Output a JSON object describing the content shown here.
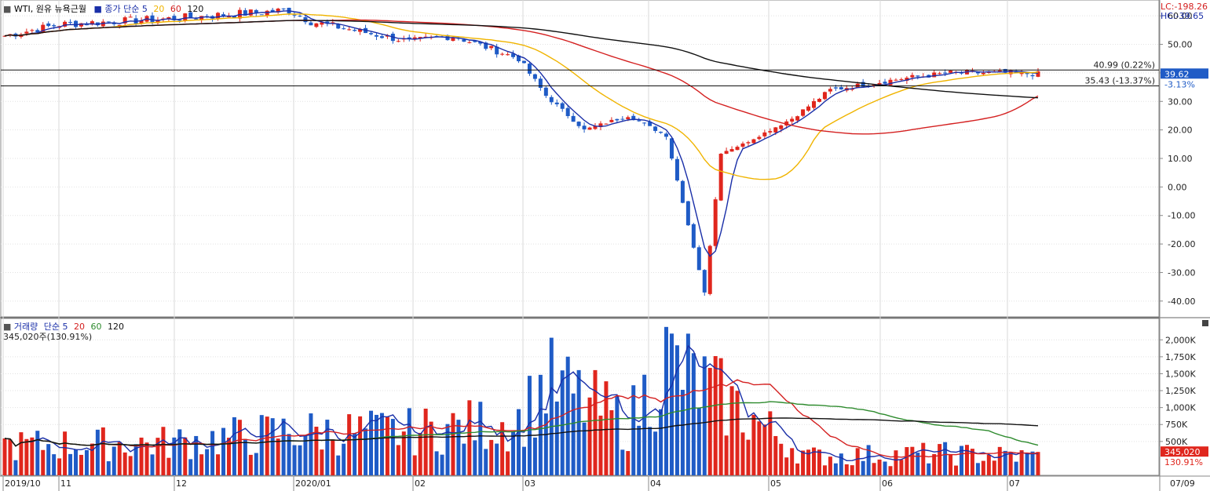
{
  "price_legend": {
    "marker": "■",
    "title": "WTI, 원유 뉴욕근월",
    "ma_label": "■ 종가 단순",
    "ma_periods": [
      "5",
      "20",
      "60",
      "120"
    ],
    "ma_colors": [
      "#1a2fa8",
      "#f0b400",
      "#d42020",
      "#111111"
    ]
  },
  "volume_legend": {
    "marker": "■",
    "title": "거래량",
    "ma_label": "단순",
    "ma_periods": [
      "5",
      "20",
      "60",
      "120"
    ],
    "ma_colors": [
      "#1a2fa8",
      "#d42020",
      "#2e8b2e",
      "#111111"
    ],
    "current": "345,020주(130.91%)"
  },
  "corner_labels": {
    "lc": "LC:-198.26",
    "hc": "HC:-39.65"
  },
  "price_axis": {
    "ticks": [
      "60.00",
      "50.00",
      "40.00",
      "30.00",
      "20.00",
      "10.00",
      "0.00",
      "-10.00",
      "-20.00",
      "-30.00",
      "-40.00"
    ]
  },
  "volume_axis": {
    "ticks": [
      "2,000K",
      "1,750K",
      "1,500K",
      "1,250K",
      "1,000K",
      "750K",
      "500K"
    ]
  },
  "x_axis": {
    "labels": [
      "2019/10",
      "11",
      "12",
      "2020/01",
      "02",
      "03",
      "04",
      "05",
      "06",
      "07"
    ],
    "right_label": "07/09"
  },
  "current_price": {
    "value": "39.62",
    "change": "-3.13%"
  },
  "current_volume": {
    "value": "345,020",
    "change": "130.91%"
  },
  "h_lines": [
    {
      "price": 40.99,
      "label": "40.99 (0.22%)"
    },
    {
      "price": 35.43,
      "label": "35.43 (-13.37%)"
    }
  ],
  "chart_data": {
    "type": "candlestick",
    "title": "WTI, 원유 뉴욕근월",
    "x_range": [
      "2019/10",
      "2020/07"
    ],
    "price_range": [
      -45,
      65
    ],
    "volume_range": [
      0,
      2200000
    ],
    "price_anchors": [
      {
        "date": "2019/10",
        "close": 53
      },
      {
        "date": "2019/11",
        "close": 57
      },
      {
        "date": "2019/12",
        "close": 59
      },
      {
        "date": "2020/01",
        "close": 62
      },
      {
        "date": "2020/01",
        "close": 58
      },
      {
        "date": "2020/02",
        "close": 51
      },
      {
        "date": "2020/02",
        "close": 53
      },
      {
        "date": "2020/03",
        "close": 45
      },
      {
        "date": "2020/03",
        "close": 32
      },
      {
        "date": "2020/03",
        "close": 20
      },
      {
        "date": "2020/04",
        "close": 25
      },
      {
        "date": "2020/04",
        "close": 18
      },
      {
        "date": "2020/04",
        "close": -37
      },
      {
        "date": "2020/04",
        "close": 12
      },
      {
        "date": "2020/05",
        "close": 15
      },
      {
        "date": "2020/05",
        "close": 24
      },
      {
        "date": "2020/05",
        "close": 34
      },
      {
        "date": "2020/06",
        "close": 38
      },
      {
        "date": "2020/06",
        "close": 40
      },
      {
        "date": "2020/07",
        "close": 40
      },
      {
        "date": "2020/07",
        "close": 39.62
      }
    ],
    "volume_anchors": [
      {
        "date": "2019/10",
        "volume": 550000
      },
      {
        "date": "2019/12",
        "volume": 600000
      },
      {
        "date": "2020/01",
        "volume": 800000
      },
      {
        "date": "2020/02",
        "volume": 800000
      },
      {
        "date": "2020/03",
        "volume": 1000000
      },
      {
        "date": "2020/03",
        "volume": 1700000
      },
      {
        "date": "2020/04",
        "volume": 950000
      },
      {
        "date": "2020/04",
        "volume": 2100000
      },
      {
        "date": "2020/05",
        "volume": 350000
      },
      {
        "date": "2020/06",
        "volume": 400000
      },
      {
        "date": "2020/07",
        "volume": 345020
      }
    ]
  }
}
